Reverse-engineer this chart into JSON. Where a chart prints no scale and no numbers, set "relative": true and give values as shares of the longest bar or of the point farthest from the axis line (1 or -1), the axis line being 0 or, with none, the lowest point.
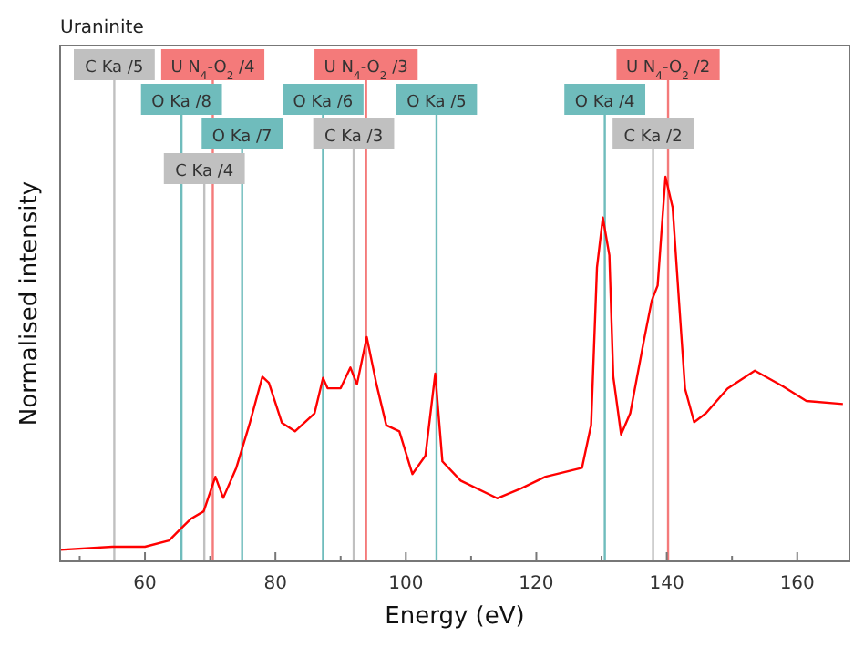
{
  "chart_data": {
    "type": "line",
    "title": "Uraninite",
    "xlabel": "Energy (eV)",
    "ylabel": "Normalised intensity",
    "relative": true,
    "xlim": [
      47,
      168
    ],
    "xticks": [
      {
        "value": 50,
        "label": null
      },
      60,
      {
        "value": 70,
        "label": null
      },
      80,
      {
        "value": 90,
        "label": null
      },
      100,
      {
        "value": 110,
        "label": null
      },
      120,
      {
        "value": 130,
        "label": null
      },
      140,
      {
        "value": 150,
        "label": null
      },
      160
    ],
    "x": [
      47,
      55,
      60,
      63.7,
      65.5,
      67,
      69,
      70.8,
      72,
      74,
      76,
      78,
      79,
      81,
      83,
      86,
      87.3,
      88,
      90,
      91.5,
      92.5,
      94,
      95.5,
      97,
      99,
      101,
      103,
      104.5,
      105.6,
      108.4,
      114,
      117.7,
      121.4,
      127,
      128.4,
      129.3,
      130.2,
      131.2,
      131.8,
      133,
      134.4,
      136.5,
      137.7,
      138.6,
      139.8,
      140.9,
      141.9,
      142.8,
      144.2,
      146,
      149.3,
      153.5,
      157.7,
      161.4,
      167
    ],
    "series": [
      {
        "color": "#ff0000",
        "values": [
          0.03,
          0.038,
          0.038,
          0.054,
          0.085,
          0.11,
          0.13,
          0.22,
          0.165,
          0.243,
          0.355,
          0.48,
          0.464,
          0.36,
          0.338,
          0.385,
          0.477,
          0.45,
          0.45,
          0.504,
          0.46,
          0.583,
          0.46,
          0.354,
          0.338,
          0.227,
          0.275,
          0.488,
          0.26,
          0.21,
          0.164,
          0.19,
          0.22,
          0.243,
          0.354,
          0.764,
          0.894,
          0.796,
          0.48,
          0.33,
          0.385,
          0.575,
          0.678,
          0.717,
          1.0,
          0.92,
          0.67,
          0.449,
          0.362,
          0.385,
          0.449,
          0.496,
          0.456,
          0.417,
          0.409
        ]
      }
    ],
    "marker": "none",
    "line_style": "solid",
    "grid": false,
    "ref_lines": [
      {
        "axis": "x",
        "value": 55.3,
        "label": "C Ka /5",
        "color": "#c0c0c0"
      },
      {
        "axis": "x",
        "value": 70.4,
        "label": "U N$_{4}$-O$_{2}$ /4",
        "color": "#f47a7a"
      },
      {
        "axis": "x",
        "value": 93.9,
        "label": "U N$_{4}$-O$_{2}$ /3",
        "color": "#f47a7a"
      },
      {
        "axis": "x",
        "value": 140.2,
        "label": "U N$_{4}$-O$_{2}$ /2",
        "color": "#f47a7a"
      },
      {
        "axis": "x",
        "value": 65.6,
        "label": "O Ka /8",
        "color": "#6fbcbc"
      },
      {
        "axis": "x",
        "value": 87.3,
        "label": "O Ka /6",
        "color": "#6fbcbc"
      },
      {
        "axis": "x",
        "value": 104.7,
        "label": "O Ka /5",
        "color": "#6fbcbc"
      },
      {
        "axis": "x",
        "value": 130.5,
        "label": "O Ka /4",
        "color": "#6fbcbc"
      },
      {
        "axis": "x",
        "value": 74.9,
        "label": "O Ka /7",
        "color": "#6fbcbc"
      },
      {
        "axis": "x",
        "value": 92.0,
        "label": "C Ka /3",
        "color": "#c0c0c0"
      },
      {
        "axis": "x",
        "value": 137.9,
        "label": "C Ka /2",
        "color": "#c0c0c0"
      },
      {
        "axis": "x",
        "value": 69.1,
        "label": "C Ka /4",
        "color": "#c0c0c0"
      }
    ]
  }
}
